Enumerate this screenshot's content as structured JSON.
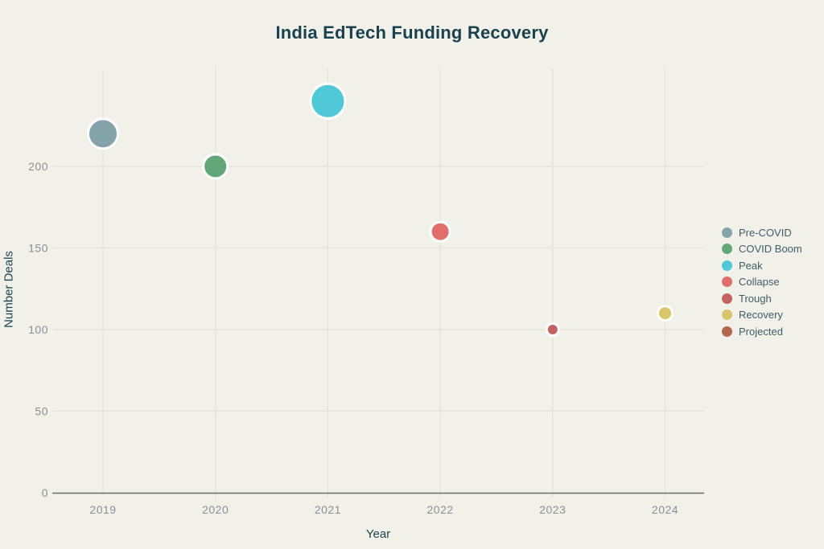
{
  "page": {
    "background_color": "#f1f1ea",
    "title_color": "#1a424e",
    "tick_label_color": "#8b8f8f",
    "gridline_color": "#e2e4dc",
    "axis_line_color": "#6b6f67",
    "legend_text_color": "#3f5d66"
  },
  "chart_data": {
    "type": "scatter",
    "title": "India EdTech Funding Recovery",
    "xlabel": "Year",
    "ylabel": "Number Deals",
    "x_ticks": [
      "2019",
      "2020",
      "2021",
      "2022",
      "2023",
      "2024"
    ],
    "y_ticks": [
      0,
      50,
      100,
      150,
      200
    ],
    "xlim": [
      2018.55,
      2024.35
    ],
    "ylim": [
      0,
      260
    ],
    "grid": true,
    "legend_position": "right",
    "point_border_color": "#ffffff",
    "series": [
      {
        "name": "Pre-COVID",
        "x": 2019,
        "y": 220,
        "radius_px": 18.5,
        "color": "#85a3ab"
      },
      {
        "name": "COVID Boom",
        "x": 2020,
        "y": 200,
        "radius_px": 15,
        "color": "#61a777"
      },
      {
        "name": "Peak",
        "x": 2021,
        "y": 240,
        "radius_px": 21.5,
        "color": "#50c8d7"
      },
      {
        "name": "Collapse",
        "x": 2022,
        "y": 160,
        "radius_px": 12,
        "color": "#e06e6d"
      },
      {
        "name": "Trough",
        "x": 2023,
        "y": 100,
        "radius_px": 7.5,
        "color": "#c26360"
      },
      {
        "name": "Recovery",
        "x": 2024,
        "y": 110,
        "radius_px": 9,
        "color": "#d9c66c"
      },
      {
        "name": "Projected",
        "x": null,
        "y": null,
        "radius_px": null,
        "color": "#b2674f"
      }
    ]
  }
}
